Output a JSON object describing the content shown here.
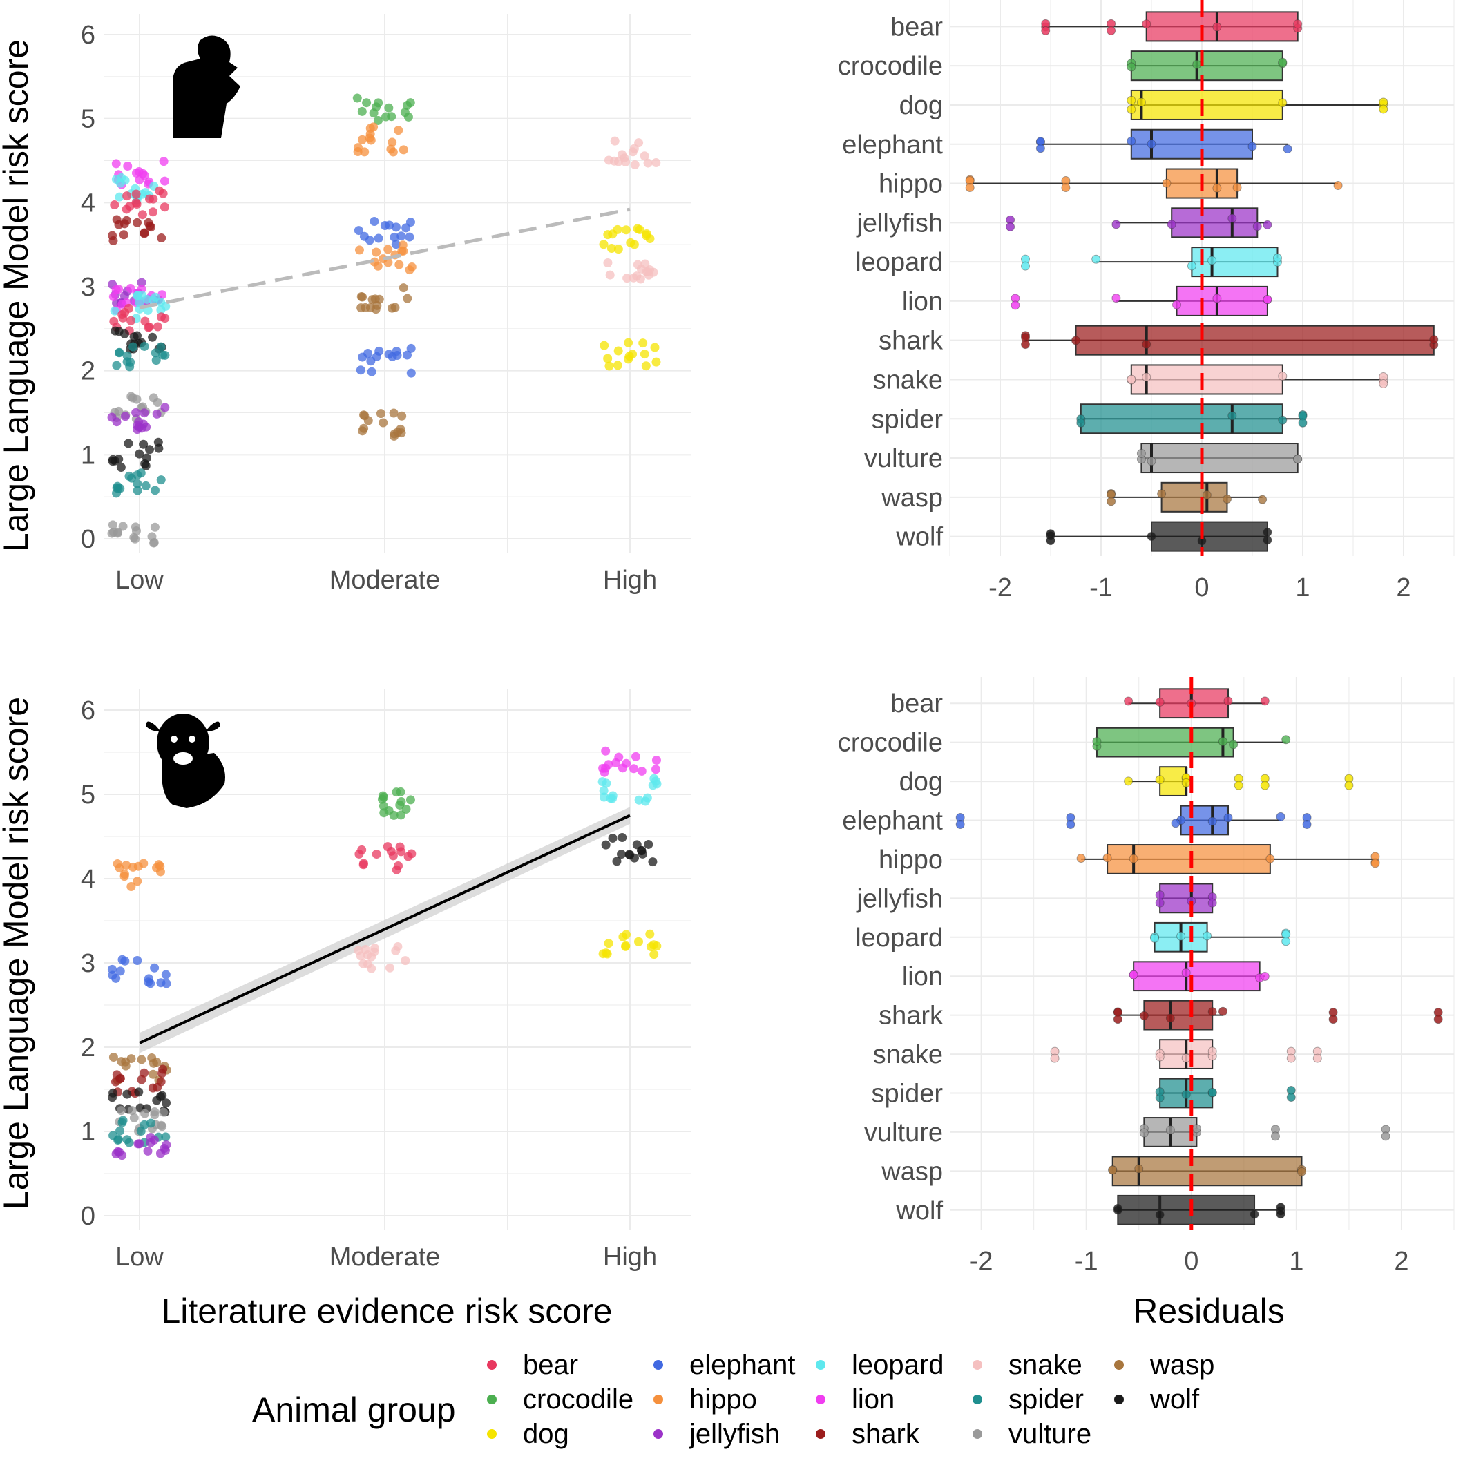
{
  "colors": {
    "bear": "#e8385f",
    "crocodile": "#4caf50",
    "dog": "#f5e400",
    "elephant": "#4169e1",
    "hippo": "#f5903d",
    "jellyfish": "#9b32c8",
    "leopard": "#5ee8ee",
    "lion": "#f03ef0",
    "shark": "#9b1c1c",
    "snake": "#f5c0c0",
    "spider": "#1f8f8f",
    "vulture": "#9a9a9a",
    "wasp": "#a8763e",
    "wolf": "#1a1a1a"
  },
  "icons": {
    "top": "human-thinking-silhouette-icon",
    "bottom": "cow-silhouette-icon"
  },
  "axis_titles": {
    "y_left_top": "Large Language Model risk score",
    "y_left_bottom": "Large Language Model risk score",
    "x_left": "Literature evidence risk score",
    "x_right": "Residuals"
  },
  "legend": {
    "title": "Animal group",
    "items": [
      "bear",
      "crocodile",
      "dog",
      "elephant",
      "hippo",
      "jellyfish",
      "leopard",
      "lion",
      "shark",
      "snake",
      "spider",
      "vulture",
      "wasp",
      "wolf"
    ]
  },
  "chart_data": [
    {
      "id": "top-left",
      "type": "scatter",
      "title": "",
      "xlabel": "",
      "ylabel": "Large Language Model risk score",
      "categories": [
        "Low",
        "Moderate",
        "High"
      ],
      "ylim": [
        0,
        6
      ],
      "yticks": [
        "0",
        "1",
        "2",
        "3",
        "4",
        "5",
        "6"
      ],
      "trend": {
        "from": [
          1,
          2.75
        ],
        "to": [
          3,
          3.92
        ],
        "style": "dashed",
        "color": "#bbbbbb"
      },
      "groups": [
        {
          "animal": "lion",
          "x": 1,
          "y": 4.35
        },
        {
          "animal": "leopard",
          "x": 1,
          "y": 4.15
        },
        {
          "animal": "bear",
          "x": 1,
          "y": 4.0
        },
        {
          "animal": "shark",
          "x": 1,
          "y": 3.65
        },
        {
          "animal": "jellyfish",
          "x": 1,
          "y": 2.95
        },
        {
          "animal": "lion",
          "x": 1,
          "y": 2.85
        },
        {
          "animal": "leopard",
          "x": 1,
          "y": 2.75
        },
        {
          "animal": "bear",
          "x": 1,
          "y": 2.62
        },
        {
          "animal": "wolf",
          "x": 1,
          "y": 2.4
        },
        {
          "animal": "spider",
          "x": 1,
          "y": 2.15
        },
        {
          "animal": "vulture",
          "x": 1,
          "y": 1.55
        },
        {
          "animal": "jellyfish",
          "x": 1,
          "y": 1.45
        },
        {
          "animal": "wolf",
          "x": 1,
          "y": 1.0
        },
        {
          "animal": "spider",
          "x": 1,
          "y": 0.65
        },
        {
          "animal": "vulture",
          "x": 1,
          "y": 0.08
        },
        {
          "animal": "crocodile",
          "x": 2,
          "y": 5.1
        },
        {
          "animal": "hippo",
          "x": 2,
          "y": 4.75
        },
        {
          "animal": "elephant",
          "x": 2,
          "y": 3.65
        },
        {
          "animal": "hippo",
          "x": 2,
          "y": 3.35
        },
        {
          "animal": "wasp",
          "x": 2,
          "y": 2.85
        },
        {
          "animal": "elephant",
          "x": 2,
          "y": 2.12
        },
        {
          "animal": "wasp",
          "x": 2,
          "y": 1.37
        },
        {
          "animal": "snake",
          "x": 3,
          "y": 4.6
        },
        {
          "animal": "dog",
          "x": 3,
          "y": 3.55
        },
        {
          "animal": "snake",
          "x": 3,
          "y": 3.2
        },
        {
          "animal": "dog",
          "x": 3,
          "y": 2.2
        }
      ]
    },
    {
      "id": "top-right",
      "type": "box",
      "title": "",
      "xlabel": "",
      "ylabel": "",
      "xlim": [
        -2.5,
        2.5
      ],
      "xticks": [
        "-2",
        "-1",
        "0",
        "1",
        "2"
      ],
      "reference_line": 0,
      "boxes": [
        {
          "animal": "bear",
          "wmin": -1.55,
          "q1": -0.55,
          "median": 0.15,
          "q3": 0.95,
          "wmax": 0.95,
          "outliers": [
            -1.55,
            -0.9
          ]
        },
        {
          "animal": "crocodile",
          "wmin": -0.7,
          "q1": -0.7,
          "median": -0.05,
          "q3": 0.8,
          "wmax": 0.8,
          "outliers": []
        },
        {
          "animal": "dog",
          "wmin": -0.7,
          "q1": -0.7,
          "median": -0.6,
          "q3": 0.8,
          "wmax": 1.8,
          "outliers": [
            1.8
          ]
        },
        {
          "animal": "elephant",
          "wmin": -1.6,
          "q1": -0.7,
          "median": -0.5,
          "q3": 0.5,
          "wmax": 0.85,
          "outliers": [
            -1.6
          ]
        },
        {
          "animal": "hippo",
          "wmin": -2.3,
          "q1": -0.35,
          "median": 0.15,
          "q3": 0.35,
          "wmax": 1.35,
          "outliers": [
            -2.3,
            -1.35
          ]
        },
        {
          "animal": "jellyfish",
          "wmin": -0.85,
          "q1": -0.3,
          "median": 0.3,
          "q3": 0.55,
          "wmax": 0.65,
          "outliers": [
            -1.9
          ]
        },
        {
          "animal": "leopard",
          "wmin": -1.05,
          "q1": -0.1,
          "median": 0.1,
          "q3": 0.75,
          "wmax": 0.75,
          "outliers": [
            -1.75
          ]
        },
        {
          "animal": "lion",
          "wmin": -0.85,
          "q1": -0.25,
          "median": 0.15,
          "q3": 0.65,
          "wmax": 0.65,
          "outliers": [
            -1.85
          ]
        },
        {
          "animal": "shark",
          "wmin": -1.75,
          "q1": -1.25,
          "median": -0.55,
          "q3": 2.3,
          "wmax": 2.3,
          "outliers": [
            -1.75
          ]
        },
        {
          "animal": "snake",
          "wmin": -0.7,
          "q1": -0.7,
          "median": -0.55,
          "q3": 0.8,
          "wmax": 1.8,
          "outliers": [
            1.8
          ]
        },
        {
          "animal": "spider",
          "wmin": -1.2,
          "q1": -1.2,
          "median": 0.3,
          "q3": 0.8,
          "wmax": 1.0,
          "outliers": [
            1.0
          ]
        },
        {
          "animal": "vulture",
          "wmin": -0.6,
          "q1": -0.6,
          "median": -0.5,
          "q3": 0.95,
          "wmax": 0.95,
          "outliers": []
        },
        {
          "animal": "wasp",
          "wmin": -0.9,
          "q1": -0.4,
          "median": 0.05,
          "q3": 0.25,
          "wmax": 0.6,
          "outliers": [
            -0.9
          ]
        },
        {
          "animal": "wolf",
          "wmin": -1.5,
          "q1": -0.5,
          "median": 0.0,
          "q3": 0.65,
          "wmax": 0.65,
          "outliers": [
            -1.5
          ]
        }
      ]
    },
    {
      "id": "bottom-left",
      "type": "scatter",
      "title": "",
      "xlabel": "Literature evidence risk score",
      "ylabel": "Large Language Model risk score",
      "categories": [
        "Low",
        "Moderate",
        "High"
      ],
      "ylim": [
        0,
        6
      ],
      "yticks": [
        "0",
        "1",
        "2",
        "3",
        "4",
        "5",
        "6"
      ],
      "trend": {
        "from": [
          1,
          2.05
        ],
        "to": [
          3,
          4.75
        ],
        "style": "solid",
        "color": "#000000",
        "ci": true
      },
      "groups": [
        {
          "animal": "hippo",
          "x": 1,
          "y": 4.05
        },
        {
          "animal": "elephant",
          "x": 1,
          "y": 2.9
        },
        {
          "animal": "wasp",
          "x": 1,
          "y": 1.75
        },
        {
          "animal": "shark",
          "x": 1,
          "y": 1.6
        },
        {
          "animal": "wolf",
          "x": 1,
          "y": 1.35
        },
        {
          "animal": "vulture",
          "x": 1,
          "y": 1.15
        },
        {
          "animal": "spider",
          "x": 1,
          "y": 1.0
        },
        {
          "animal": "jellyfish",
          "x": 1,
          "y": 0.85
        },
        {
          "animal": "crocodile",
          "x": 2,
          "y": 4.9
        },
        {
          "animal": "bear",
          "x": 2,
          "y": 4.25
        },
        {
          "animal": "snake",
          "x": 2,
          "y": 3.05
        },
        {
          "animal": "lion",
          "x": 3,
          "y": 5.4
        },
        {
          "animal": "leopard",
          "x": 3,
          "y": 5.05
        },
        {
          "animal": "wolf",
          "x": 3,
          "y": 4.35
        },
        {
          "animal": "dog",
          "x": 3,
          "y": 3.25
        }
      ]
    },
    {
      "id": "bottom-right",
      "type": "box",
      "title": "",
      "xlabel": "Residuals",
      "ylabel": "",
      "xlim": [
        -2.3,
        2.5
      ],
      "xticks": [
        "-2",
        "-1",
        "0",
        "1",
        "2"
      ],
      "reference_line": 0,
      "boxes": [
        {
          "animal": "bear",
          "wmin": -0.6,
          "q1": -0.3,
          "median": 0.0,
          "q3": 0.35,
          "wmax": 0.7,
          "outliers": []
        },
        {
          "animal": "crocodile",
          "wmin": -0.9,
          "q1": -0.9,
          "median": 0.3,
          "q3": 0.4,
          "wmax": 0.9,
          "outliers": []
        },
        {
          "animal": "dog",
          "wmin": -0.6,
          "q1": -0.3,
          "median": -0.05,
          "q3": -0.05,
          "wmax": -0.05,
          "outliers": [
            0.45,
            0.7,
            1.5
          ]
        },
        {
          "animal": "elephant",
          "wmin": -0.15,
          "q1": -0.1,
          "median": 0.2,
          "q3": 0.35,
          "wmax": 0.85,
          "outliers": [
            -2.2,
            -1.15,
            1.1
          ]
        },
        {
          "animal": "hippo",
          "wmin": -1.05,
          "q1": -0.8,
          "median": -0.55,
          "q3": 0.75,
          "wmax": 1.75,
          "outliers": [
            1.75
          ]
        },
        {
          "animal": "jellyfish",
          "wmin": -0.3,
          "q1": -0.3,
          "median": 0.0,
          "q3": 0.2,
          "wmax": 0.2,
          "outliers": []
        },
        {
          "animal": "leopard",
          "wmin": -0.35,
          "q1": -0.35,
          "median": -0.1,
          "q3": 0.15,
          "wmax": 0.9,
          "outliers": [
            0.9
          ]
        },
        {
          "animal": "lion",
          "wmin": -0.55,
          "q1": -0.55,
          "median": -0.05,
          "q3": 0.65,
          "wmax": 0.7,
          "outliers": []
        },
        {
          "animal": "shark",
          "wmin": -0.7,
          "q1": -0.45,
          "median": -0.2,
          "q3": 0.2,
          "wmax": 0.3,
          "outliers": [
            -0.7,
            1.35,
            2.35
          ]
        },
        {
          "animal": "snake",
          "wmin": -0.3,
          "q1": -0.3,
          "median": -0.05,
          "q3": 0.2,
          "wmax": 0.2,
          "outliers": [
            -1.3,
            0.95,
            1.2
          ]
        },
        {
          "animal": "spider",
          "wmin": -0.3,
          "q1": -0.3,
          "median": -0.05,
          "q3": 0.2,
          "wmax": 0.2,
          "outliers": [
            0.95
          ]
        },
        {
          "animal": "vulture",
          "wmin": -0.45,
          "q1": -0.45,
          "median": -0.2,
          "q3": 0.05,
          "wmax": 0.05,
          "outliers": [
            0.8,
            1.85
          ]
        },
        {
          "animal": "wasp",
          "wmin": -0.75,
          "q1": -0.75,
          "median": -0.5,
          "q3": 1.05,
          "wmax": 1.05,
          "outliers": []
        },
        {
          "animal": "wolf",
          "wmin": -0.7,
          "q1": -0.7,
          "median": -0.3,
          "q3": 0.6,
          "wmax": 0.85,
          "outliers": [
            0.85
          ]
        }
      ]
    }
  ]
}
